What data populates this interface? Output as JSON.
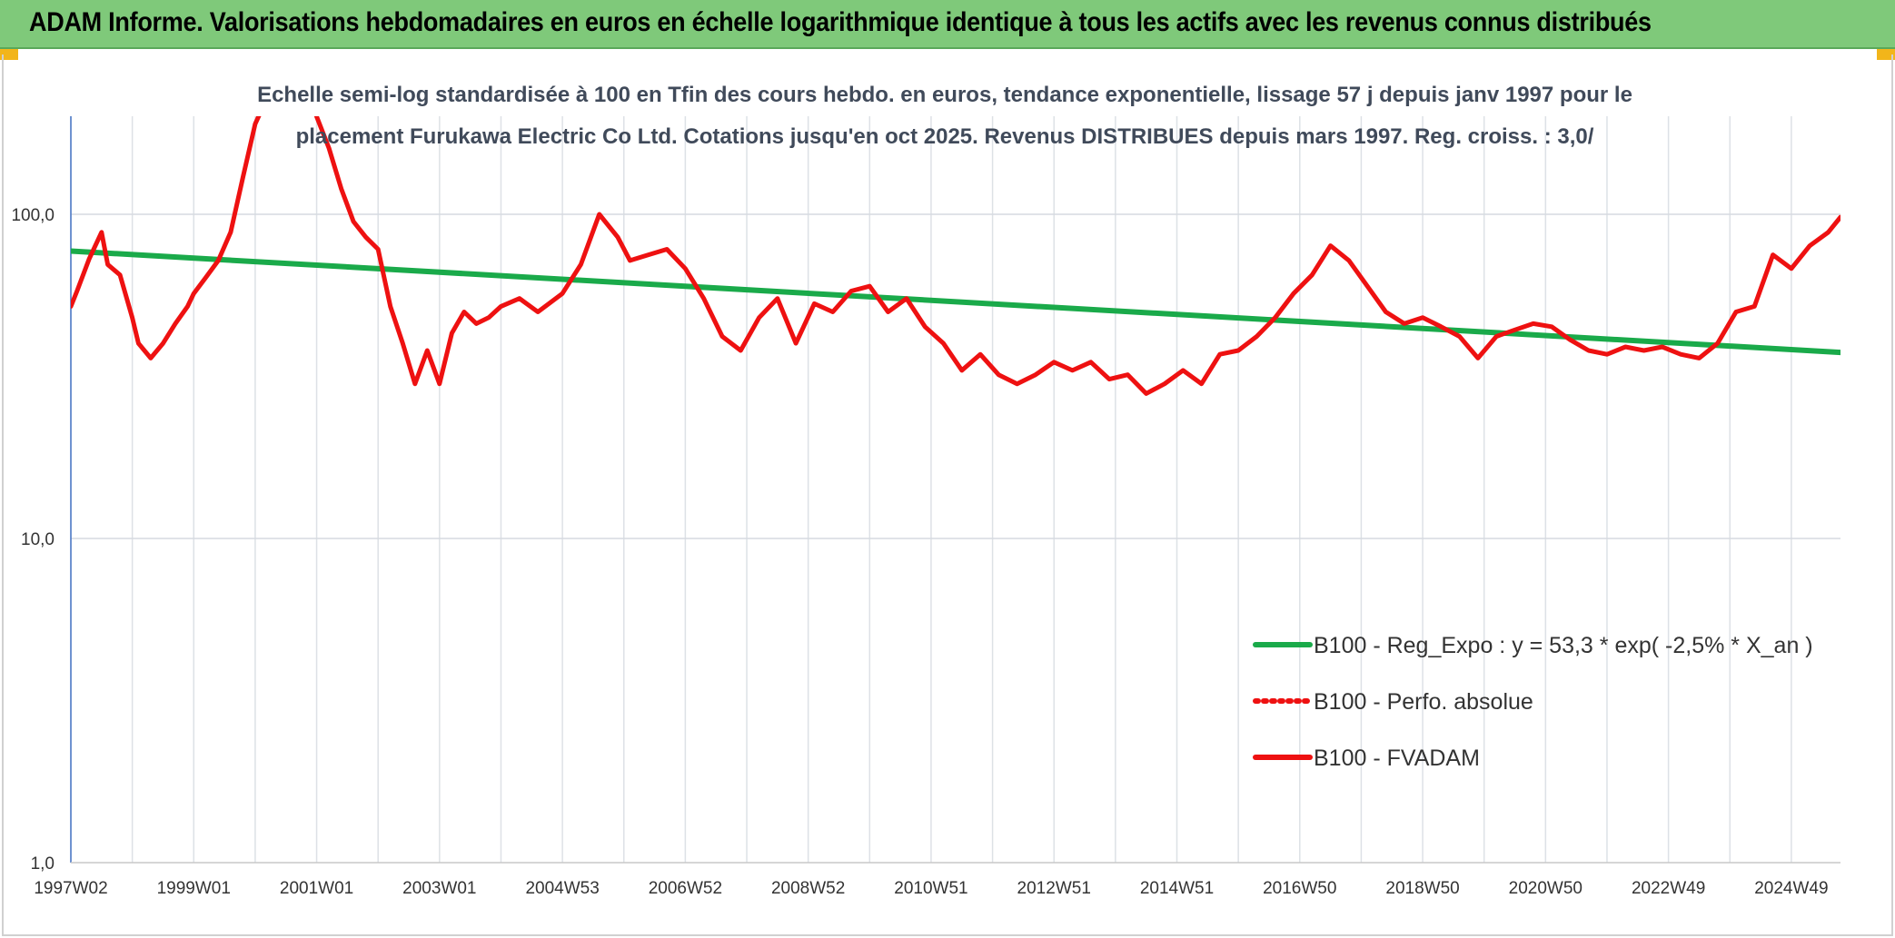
{
  "banner": {
    "title": "ADAM Informe. Valorisations hebdomadaires en euros en échelle logarithmique identique à tous les actifs avec les revenus connus distribués",
    "color": "#7fc97a",
    "corner_color": "#f2b51a"
  },
  "chart_data": {
    "type": "line",
    "title_line1": "Echelle semi-log standardisée à 100 en Tfin des cours hebdo. en euros, tendance exponentielle, lissage 57 j depuis janv 1997 pour le",
    "title_line2": "placement Furukawa Electric Co Ltd. Cotations jusqu'en oct 2025. Revenus DISTRIBUES depuis mars 1997. Reg. croiss. : 3,0/",
    "y_scale": "log",
    "ylim": [
      1,
      200
    ],
    "xlim": [
      1997.0,
      2025.8
    ],
    "y_ticks": [
      {
        "value": 1,
        "label": "1,0"
      },
      {
        "value": 10,
        "label": "10,0"
      },
      {
        "value": 100,
        "label": "100,0"
      }
    ],
    "x_ticks": [
      {
        "value": 1997.0,
        "label": "1997W02"
      },
      {
        "value": 1999.0,
        "label": "1999W01"
      },
      {
        "value": 2001.0,
        "label": "2001W01"
      },
      {
        "value": 2003.0,
        "label": "2003W01"
      },
      {
        "value": 2005.0,
        "label": "2004W53"
      },
      {
        "value": 2007.0,
        "label": "2006W52"
      },
      {
        "value": 2009.0,
        "label": "2008W52"
      },
      {
        "value": 2011.0,
        "label": "2010W51"
      },
      {
        "value": 2013.0,
        "label": "2012W51"
      },
      {
        "value": 2015.0,
        "label": "2014W51"
      },
      {
        "value": 2017.0,
        "label": "2016W50"
      },
      {
        "value": 2019.0,
        "label": "2018W50"
      },
      {
        "value": 2021.0,
        "label": "2020W50"
      },
      {
        "value": 2023.0,
        "label": "2022W49"
      },
      {
        "value": 2025.0,
        "label": "2024W49"
      }
    ],
    "grid": "vertical and horizontal",
    "legend_position": "bottom-right",
    "series": [
      {
        "name": "B100 - Reg_Expo : y = 53,3 * exp( -2,5% *  X_an )",
        "color": "#1aaa4a",
        "style": "solid",
        "x": [
          1997.0,
          2025.8
        ],
        "y": [
          77.0,
          37.5
        ]
      },
      {
        "name": "B100 - Perfo. absolue",
        "color": "#ee1111",
        "style": "dotted",
        "x": [],
        "y": []
      },
      {
        "name": "B100 - FVADAM",
        "color": "#ee1111",
        "style": "solid",
        "x": [
          1997.0,
          1997.1,
          1997.3,
          1997.5,
          1997.6,
          1997.8,
          1998.0,
          1998.1,
          1998.3,
          1998.5,
          1998.7,
          1998.9,
          1999.0,
          1999.2,
          1999.4,
          1999.6,
          1999.8,
          2000.0,
          2000.2,
          2000.4,
          2000.6,
          2000.8,
          2001.0,
          2001.2,
          2001.4,
          2001.6,
          2001.8,
          2002.0,
          2002.2,
          2002.4,
          2002.6,
          2002.8,
          2003.0,
          2003.2,
          2003.4,
          2003.6,
          2003.8,
          2004.0,
          2004.3,
          2004.6,
          2005.0,
          2005.3,
          2005.6,
          2005.9,
          2006.1,
          2006.4,
          2006.7,
          2007.0,
          2007.3,
          2007.6,
          2007.9,
          2008.2,
          2008.5,
          2008.8,
          2009.1,
          2009.4,
          2009.7,
          2010.0,
          2010.3,
          2010.6,
          2010.9,
          2011.2,
          2011.5,
          2011.8,
          2012.1,
          2012.4,
          2012.7,
          2013.0,
          2013.3,
          2013.6,
          2013.9,
          2014.2,
          2014.5,
          2014.8,
          2015.1,
          2015.4,
          2015.7,
          2016.0,
          2016.3,
          2016.6,
          2016.9,
          2017.2,
          2017.5,
          2017.8,
          2018.1,
          2018.4,
          2018.7,
          2019.0,
          2019.3,
          2019.6,
          2019.9,
          2020.2,
          2020.5,
          2020.8,
          2021.1,
          2021.4,
          2021.7,
          2022.0,
          2022.3,
          2022.6,
          2022.9,
          2023.2,
          2023.5,
          2023.8,
          2024.1,
          2024.4,
          2024.7,
          2025.0,
          2025.3,
          2025.6,
          2025.8
        ],
        "y": [
          52,
          58,
          73,
          88,
          70,
          65,
          48,
          40,
          36,
          40,
          46,
          52,
          57,
          64,
          72,
          88,
          130,
          190,
          230,
          250,
          260,
          270,
          200,
          160,
          120,
          95,
          85,
          78,
          52,
          40,
          30,
          38,
          30,
          43,
          50,
          46,
          48,
          52,
          55,
          50,
          57,
          70,
          100,
          85,
          72,
          75,
          78,
          68,
          55,
          42,
          38,
          48,
          55,
          40,
          53,
          50,
          58,
          60,
          50,
          55,
          45,
          40,
          33,
          37,
          32,
          30,
          32,
          35,
          33,
          35,
          31,
          32,
          28,
          30,
          33,
          30,
          37,
          38,
          42,
          48,
          57,
          65,
          80,
          72,
          60,
          50,
          46,
          48,
          45,
          42,
          36,
          42,
          44,
          46,
          45,
          41,
          38,
          37,
          39,
          38,
          39,
          37,
          36,
          40,
          50,
          52,
          75,
          68,
          80,
          88,
          98
        ]
      }
    ]
  }
}
